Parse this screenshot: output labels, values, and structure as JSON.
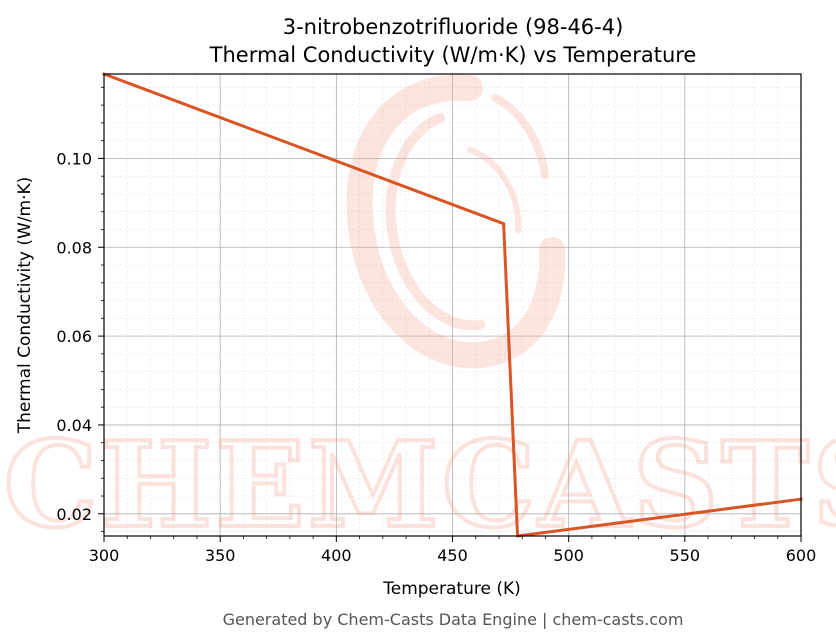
{
  "colors": {
    "line": "#d95525",
    "watermark": "#f7a08f",
    "major_grid": "#b0b0b0",
    "minor_grid": "#e2e2e2",
    "footer": "#555555"
  },
  "watermark": {
    "text": "CHEMCASTS"
  },
  "footer": {
    "text": "Generated by Chem-Casts Data Engine | chem-casts.com"
  },
  "chart_data": {
    "type": "line",
    "title": "3-nitrobenzotrifluoride (98-46-4)",
    "subtitle": "Thermal Conductivity (W/m·K) vs Temperature",
    "xlabel": "Temperature (K)",
    "ylabel": "Thermal Conductivity (W/m·K)",
    "xlim": [
      300,
      600
    ],
    "ylim": [
      0.015,
      0.119
    ],
    "xticks": [
      300,
      350,
      400,
      450,
      500,
      550,
      600
    ],
    "yticks": [
      0.02,
      0.04,
      0.06,
      0.08,
      0.1
    ],
    "xtick_labels": [
      "300",
      "350",
      "400",
      "450",
      "500",
      "550",
      "600"
    ],
    "ytick_labels": [
      "0.02",
      "0.04",
      "0.06",
      "0.08",
      "0.10"
    ],
    "grid": true,
    "minor_grid": true,
    "series": [
      {
        "x": [
          300,
          472,
          478,
          600
        ],
        "y": [
          0.119,
          0.0853,
          0.015,
          0.0233
        ]
      }
    ]
  }
}
